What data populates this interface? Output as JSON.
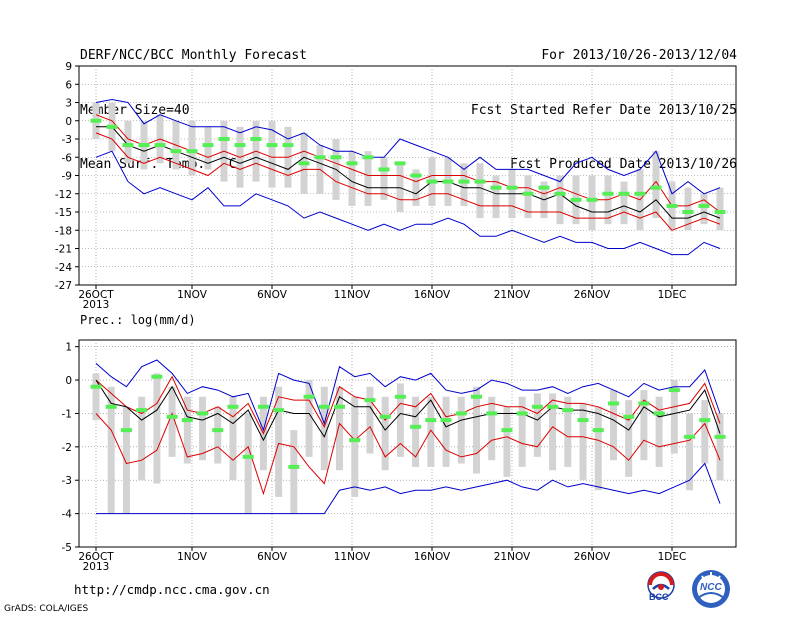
{
  "header": {
    "left": [
      "DERF/NCC/BCC Monthly Forecast",
      "Member Size=40",
      "Mean Surf. Temp.: °C"
    ],
    "right": [
      "For 2013/10/26-2013/12/04",
      "Fcst Started Refer Date 2013/10/25",
      "Fcst Produced Date 2013/10/26"
    ]
  },
  "footer": {
    "url": "http://cmdp.ncc.cma.gov.cn",
    "credit": "GrADS: COLA/IGES",
    "logo1_label": "BCC",
    "logo2_label": "NCC"
  },
  "colors": {
    "spread_bar": "#d3d3d3",
    "max_line": "#0000cc",
    "min_line": "#0000cc",
    "quartile_lines": "#dd0000",
    "mean_line": "#000000",
    "median_mark": "#55ee55",
    "grid": "#808080"
  },
  "chart_data": [
    {
      "type": "line",
      "title": "",
      "ylabel": "Mean Surf. Temp.: °C",
      "ylim": [
        -27,
        9
      ],
      "yticks": [
        9,
        6,
        3,
        0,
        -3,
        -6,
        -9,
        -12,
        -15,
        -18,
        -21,
        -24,
        -27
      ],
      "grid": true,
      "x_start": "2013-10-26",
      "x_end": "2013-12-04",
      "xtick_labels": [
        "26OCT\n2013",
        "1NOV",
        "6NOV",
        "11NOV",
        "16NOV",
        "21NOV",
        "26NOV",
        "1DEC"
      ],
      "mean": [
        -1,
        -1,
        -4,
        -5,
        -4,
        -5,
        -6,
        -7,
        -6,
        -7,
        -6,
        -7,
        -8,
        -6,
        -7,
        -8,
        -10,
        -11,
        -11,
        -11,
        -12,
        -10,
        -10,
        -11,
        -11,
        -12,
        -12,
        -12,
        -13,
        -12,
        -14,
        -15,
        -15,
        -14,
        -15,
        -13,
        -16,
        -16,
        -15,
        -16
      ],
      "upper": [
        1,
        0,
        -3,
        -4,
        -3,
        -4,
        -5,
        -6,
        -5,
        -6,
        -5,
        -6,
        -6,
        -5,
        -6,
        -7,
        -8,
        -9,
        -9,
        -9,
        -10,
        -9,
        -9,
        -9,
        -10,
        -10,
        -11,
        -11,
        -12,
        -11,
        -12,
        -13,
        -13,
        -12,
        -13,
        -10,
        -14,
        -14,
        -13,
        -15
      ],
      "lower": [
        -2,
        -3,
        -6,
        -7,
        -6,
        -7,
        -8,
        -9,
        -7,
        -8,
        -7,
        -8,
        -9,
        -8,
        -8,
        -10,
        -11,
        -12,
        -12,
        -13,
        -13,
        -12,
        -12,
        -13,
        -14,
        -14,
        -14,
        -15,
        -15,
        -15,
        -16,
        -16,
        -16,
        -15,
        -16,
        -15,
        -18,
        -17,
        -16,
        -17
      ],
      "max": [
        3,
        3.5,
        3,
        -0.5,
        1,
        0,
        -1,
        -1,
        -1,
        -2,
        -1,
        -1.5,
        -3,
        -2,
        -4,
        -5,
        -5,
        -6,
        -6,
        -3,
        -4,
        -5,
        -6,
        -8,
        -6,
        -8,
        -8,
        -8,
        -9,
        -10,
        -7,
        -6,
        -8,
        -9,
        -8,
        -5,
        -12,
        -10,
        -12,
        -11
      ],
      "min": [
        -6,
        -5,
        -10,
        -12,
        -11,
        -12,
        -13,
        -11,
        -14,
        -14,
        -12,
        -13,
        -14,
        -16,
        -15,
        -16,
        -17,
        -18,
        -17,
        -18,
        -17,
        -17,
        -16,
        -17,
        -19,
        -19,
        -18,
        -19,
        -20,
        -19,
        -20,
        -20,
        -21,
        -21,
        -20,
        -21,
        -22,
        -22,
        -20,
        -21
      ],
      "median": [
        0,
        -1,
        -4,
        -4,
        -4,
        -5,
        -5,
        -4,
        -3,
        -4,
        -3,
        -4,
        -4,
        -7,
        -6,
        -6,
        -7,
        -6,
        -8,
        -7,
        -9,
        -10,
        -10,
        -10,
        -10,
        -11,
        -11,
        -12,
        -11,
        -12,
        -13,
        -13,
        -12,
        -12,
        -12,
        -11,
        -14,
        -15,
        -14,
        -15
      ],
      "spread_max": [
        3,
        3,
        0,
        0,
        1,
        0,
        0,
        -1,
        0,
        -1,
        0,
        0,
        -1,
        -2,
        -4,
        -3,
        -5,
        -5,
        -6,
        -7,
        -8,
        -6,
        -6,
        -7,
        -7,
        -9,
        -8,
        -9,
        -10,
        -9,
        -9,
        -9,
        -9,
        -10,
        -8,
        -5,
        -10,
        -11,
        -12,
        -11
      ],
      "spread_min": [
        -3,
        -5,
        -7,
        -8,
        -7,
        -8,
        -9,
        -8,
        -10,
        -11,
        -10,
        -11,
        -11,
        -12,
        -12,
        -13,
        -14,
        -14,
        -13,
        -15,
        -14,
        -14,
        -14,
        -14,
        -16,
        -16,
        -16,
        -16,
        -16,
        -17,
        -17,
        -18,
        -17,
        -17,
        -18,
        -16,
        -18,
        -18,
        -17,
        -18
      ]
    },
    {
      "type": "line",
      "title": "",
      "ylabel": "Prec.: log(mm/d)",
      "ylim": [
        -5,
        1.2
      ],
      "yticks": [
        1,
        0,
        -1,
        -2,
        -3,
        -4,
        -5
      ],
      "grid": true,
      "x_start": "2013-10-26",
      "x_end": "2013-12-04",
      "xtick_labels": [
        "26OCT\n2013",
        "1NOV",
        "6NOV",
        "11NOV",
        "16NOV",
        "21NOV",
        "26NOV",
        "1DEC"
      ],
      "mean": [
        0,
        -0.7,
        -0.8,
        -1.2,
        -0.9,
        -0.2,
        -1.1,
        -1.2,
        -1.0,
        -1.3,
        -0.9,
        -1.8,
        -0.9,
        -1.0,
        -1.0,
        -1.7,
        -0.5,
        -0.8,
        -0.8,
        -1.5,
        -1.0,
        -1.1,
        -0.6,
        -1.4,
        -1.2,
        -1.1,
        -1.0,
        -1.0,
        -1.0,
        -1.2,
        -0.8,
        -0.9,
        -0.9,
        -1.0,
        -1.2,
        -1.5,
        -0.8,
        -1.1,
        -1.0,
        -0.9,
        -0.3,
        -1.6
      ],
      "upper": [
        0,
        -0.4,
        -0.8,
        -1.0,
        -0.7,
        0.1,
        -0.9,
        -1.0,
        -0.8,
        -1.1,
        -0.7,
        -1.6,
        -0.5,
        -0.6,
        -0.6,
        -1.4,
        -0.2,
        -0.5,
        -0.6,
        -1.2,
        -0.7,
        -0.8,
        -0.4,
        -1.1,
        -1.0,
        -0.8,
        -0.7,
        -0.8,
        -0.8,
        -1.0,
        -0.6,
        -0.7,
        -0.7,
        -0.8,
        -1.0,
        -1.2,
        -0.6,
        -0.9,
        -0.8,
        -0.7,
        -0.1,
        -1.3
      ],
      "lower": [
        -1,
        -1.5,
        -2.5,
        -2.4,
        -2.1,
        -1.0,
        -2.3,
        -2.2,
        -2.0,
        -2.4,
        -2.0,
        -3.4,
        -1.9,
        -2.0,
        -2.6,
        -3.1,
        -1.3,
        -1.8,
        -1.4,
        -2.3,
        -1.9,
        -2.3,
        -1.5,
        -2.1,
        -2.3,
        -2.2,
        -1.8,
        -1.7,
        -1.9,
        -2.0,
        -1.4,
        -1.7,
        -1.7,
        -1.8,
        -2.0,
        -2.4,
        -1.8,
        -2.0,
        -1.9,
        -1.8,
        -1.3,
        -2.4
      ],
      "max": [
        0.5,
        0.1,
        -0.2,
        0.4,
        0.6,
        0.2,
        -0.4,
        -0.2,
        -0.3,
        -0.5,
        -0.4,
        -1.5,
        0.2,
        0.0,
        -0.1,
        -1.3,
        0.4,
        0.1,
        0.2,
        -0.2,
        0.1,
        0.0,
        0.2,
        -0.3,
        -0.4,
        -0.3,
        0.0,
        -0.1,
        -0.3,
        -0.3,
        -0.2,
        -0.4,
        -0.2,
        -0.1,
        -0.3,
        -0.5,
        -0.1,
        -0.3,
        -0.2,
        -0.2,
        0.3,
        -1.0
      ],
      "min": [
        -4,
        -4,
        -4,
        -4,
        -4,
        -4,
        -4,
        -4,
        -4,
        -4,
        -4,
        -4,
        -4,
        -4,
        -4,
        -4,
        -3.3,
        -3.2,
        -3.3,
        -3.2,
        -3.4,
        -3.3,
        -3.3,
        -3.2,
        -3.3,
        -3.2,
        -3.1,
        -3.0,
        -3.2,
        -3.3,
        -3.0,
        -3.2,
        -3.1,
        -3.2,
        -3.3,
        -3.4,
        -3.3,
        -3.4,
        -3.2,
        -3.0,
        -2.5,
        -3.7
      ],
      "median": [
        -0.2,
        -0.8,
        -1.5,
        -0.9,
        0.1,
        -1.1,
        -1.2,
        -1.0,
        -1.5,
        -0.8,
        -2.3,
        -0.8,
        -0.9,
        -2.6,
        -0.5,
        -0.8,
        -0.8,
        -1.8,
        -0.6,
        -1.1,
        -0.5,
        -1.4,
        -1.2,
        -1.2,
        -1.0,
        -0.5,
        -1.0,
        -1.5,
        -1.0,
        -0.8,
        -0.8,
        -0.9,
        -1.2,
        -1.5,
        -0.7,
        -1.1,
        -0.7,
        -1.0,
        -0.3,
        -1.7,
        -1.2,
        -1.7
      ],
      "spread_max": [
        0.2,
        -0.2,
        -0.8,
        -0.5,
        0.2,
        -0.2,
        -0.5,
        -0.5,
        -0.8,
        -0.5,
        -1.0,
        -0.5,
        -0.2,
        -1.5,
        0.0,
        -0.2,
        -0.2,
        -0.5,
        -0.2,
        -0.5,
        -0.1,
        -0.5,
        -0.5,
        -0.5,
        -0.5,
        -0.2,
        -0.5,
        -0.8,
        -0.5,
        -0.4,
        -0.4,
        -0.5,
        -0.7,
        -0.8,
        -0.3,
        -0.6,
        -0.3,
        -0.5,
        0.0,
        -1.0,
        -0.6,
        -1.0
      ],
      "spread_min": [
        -1.2,
        -4.0,
        -4.0,
        -3.0,
        -3.1,
        -2.3,
        -2.5,
        -2.4,
        -2.5,
        -3.0,
        -4.0,
        -2.7,
        -3.5,
        -4.0,
        -2.3,
        -2.7,
        -2.7,
        -3.5,
        -2.2,
        -2.7,
        -2.3,
        -2.6,
        -2.6,
        -2.6,
        -2.5,
        -2.8,
        -2.4,
        -2.9,
        -2.6,
        -2.3,
        -2.7,
        -2.6,
        -3.0,
        -3.3,
        -2.4,
        -2.9,
        -2.4,
        -2.6,
        -2.2,
        -3.3,
        -2.5,
        -3.0
      ]
    }
  ]
}
